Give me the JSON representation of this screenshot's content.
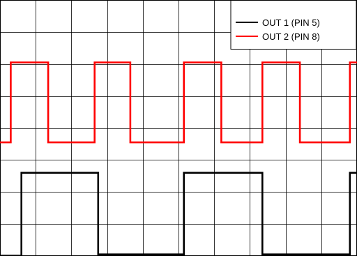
{
  "chart_data": {
    "type": "line",
    "grid": true,
    "legend_position": "top-right",
    "grid_divisions": {
      "x": 10,
      "y": 8
    },
    "series": [
      {
        "name": "OUT 1 (PIN  5)",
        "color": "#000000",
        "points": [
          [
            0.0,
            0.01
          ],
          [
            0.6,
            0.01
          ],
          [
            0.6,
            2.6
          ],
          [
            2.75,
            2.6
          ],
          [
            2.75,
            0.05
          ],
          [
            5.15,
            0.05
          ],
          [
            5.15,
            2.6
          ],
          [
            7.35,
            2.6
          ],
          [
            7.35,
            0.05
          ],
          [
            9.8,
            0.05
          ],
          [
            9.8,
            2.6
          ],
          [
            10.0,
            2.6
          ]
        ]
      },
      {
        "name": "OUT 2 (PIN  8)",
        "color": "#ff0000",
        "points": [
          [
            0.0,
            3.55
          ],
          [
            0.3,
            3.55
          ],
          [
            0.3,
            6.05
          ],
          [
            1.35,
            6.05
          ],
          [
            1.35,
            3.55
          ],
          [
            2.65,
            3.55
          ],
          [
            2.65,
            6.05
          ],
          [
            3.65,
            6.05
          ],
          [
            3.65,
            3.55
          ],
          [
            5.15,
            3.55
          ],
          [
            5.15,
            6.05
          ],
          [
            6.2,
            6.05
          ],
          [
            6.2,
            3.55
          ],
          [
            7.35,
            3.55
          ],
          [
            7.35,
            6.05
          ],
          [
            8.4,
            6.05
          ],
          [
            8.4,
            3.55
          ],
          [
            9.8,
            3.55
          ],
          [
            9.8,
            6.05
          ],
          [
            10.0,
            6.05
          ]
        ]
      }
    ]
  }
}
